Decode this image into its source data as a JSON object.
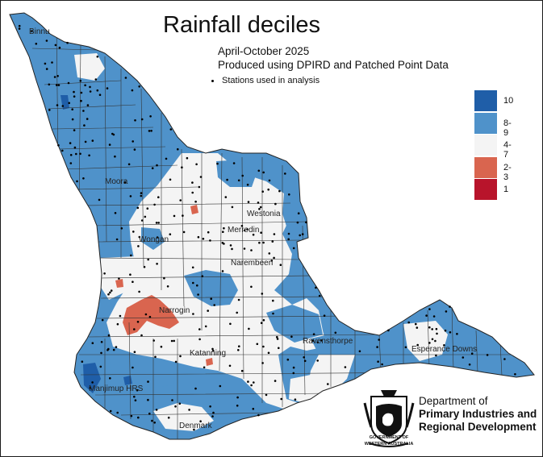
{
  "map": {
    "title": "Rainfall deciles",
    "period": "April-October 2025",
    "produced_by": "Produced using DPIRD and Patched Point Data",
    "stations_label": "Stations used in analysis"
  },
  "legend": [
    {
      "label": "10",
      "color": "#1f5ea8"
    },
    {
      "label": "8-9",
      "color": "#4f92ca"
    },
    {
      "label": "4-7",
      "color": "#f4f4f4"
    },
    {
      "label": "2-3",
      "color": "#d9654f"
    },
    {
      "label": "1",
      "color": "#b8142b"
    }
  ],
  "towns": {
    "binnu": "Binnu",
    "moora": "Moora",
    "wongan": "Wongan",
    "westonia": "Westonia",
    "merredin": "Merredin",
    "narembeen": "Narembeen",
    "narrogin": "Narrogin",
    "katanning": "Katanning",
    "ravensthorpe": "Ravensthorpe",
    "esperance": "Esperance Downs",
    "manjimup": "Manjimup HRS",
    "denmark": "Denmark"
  },
  "agency": {
    "line1": "Department of",
    "line2": "Primary Industries and",
    "line3": "Regional Development",
    "gov1": "GOVERNMENT OF",
    "gov2": "WESTERN AUSTRALIA"
  }
}
